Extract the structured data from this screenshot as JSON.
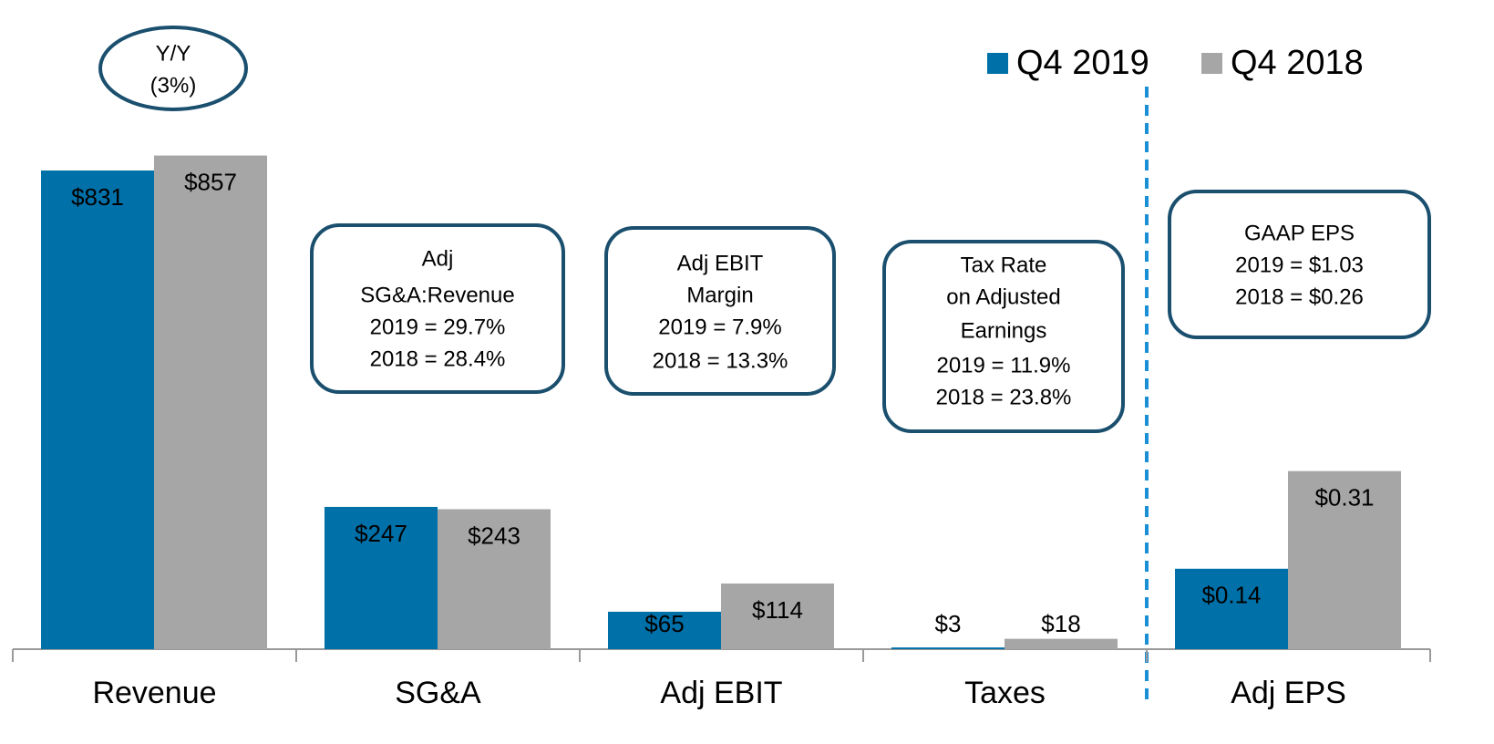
{
  "chart_data": [
    {
      "type": "bar",
      "categories": [
        "Revenue",
        "SG&A",
        "Adj EBIT",
        "Taxes"
      ],
      "series": [
        {
          "name": "Q4 2019",
          "color": "#0070a8",
          "values": [
            831,
            247,
            65,
            3
          ],
          "value_labels": [
            "$831",
            "$247",
            "$65",
            "$3"
          ]
        },
        {
          "name": "Q4 2018",
          "color": "#a6a6a6",
          "values": [
            857,
            243,
            114,
            18
          ],
          "value_labels": [
            "$857",
            "$243",
            "$114",
            "$18"
          ]
        }
      ],
      "ylim": [
        0,
        1127
      ],
      "legend": "top-right",
      "annotations": [
        {
          "shape": "ellipse",
          "lines": [
            "Y/Y",
            "(3%)"
          ]
        },
        {
          "shape": "box",
          "lines": [
            "Adj",
            "SG&A:Revenue",
            "2019 = 29.7%",
            "2018 = 28.4%"
          ]
        },
        {
          "shape": "box",
          "lines": [
            "Adj EBIT",
            "Margin",
            "2019 = 7.9%",
            "2018 = 13.3%"
          ]
        },
        {
          "shape": "box",
          "lines": [
            "Tax Rate",
            "on Adjusted",
            "Earnings",
            "2019 = 11.9%",
            "2018 = 23.8%"
          ]
        }
      ]
    },
    {
      "type": "bar",
      "categories": [
        "Adj EPS"
      ],
      "series": [
        {
          "color": "#0070a8",
          "values": [
            0.14
          ],
          "value_labels": [
            "$0.14"
          ]
        },
        {
          "color": "#a6a6a6",
          "values": [
            0.31
          ],
          "value_labels": [
            "$0.31"
          ]
        }
      ],
      "ylim": [
        0,
        1.13
      ],
      "annotations": [
        {
          "shape": "box",
          "lines": [
            "GAAP EPS",
            "2019 = $1.03",
            "2018 = $0.26"
          ]
        }
      ]
    }
  ]
}
